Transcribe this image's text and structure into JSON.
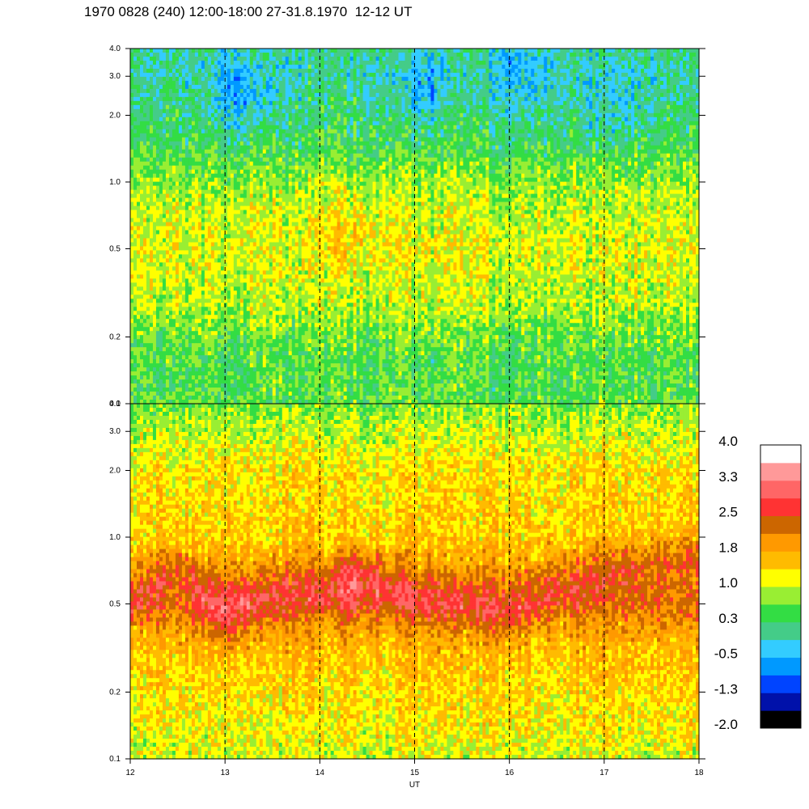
{
  "title": "1970 0828 (240) 12:00-18:00 27-31.8.1970  12-12 UT",
  "chart_data": {
    "type": "heatmap",
    "title": "1970 0828 (240) 12:00-18:00 27-31.8.1970  12-12 UT",
    "xlabel": "UT",
    "ylabel": "",
    "xlim": [
      12,
      18
    ],
    "x_ticks": [
      "12",
      "13",
      "14",
      "15",
      "16",
      "17",
      "18"
    ],
    "x_tick_values": [
      12,
      13,
      14,
      15,
      16,
      17,
      18
    ],
    "ylim": [
      0.1,
      4.0
    ],
    "y_scale": "log",
    "y_ticks": [
      "4.0",
      "3.0",
      "2.0",
      "1.0",
      "0.5",
      "0.2",
      "0.1"
    ],
    "y_tick_values": [
      4.0,
      3.0,
      2.0,
      1.0,
      0.5,
      0.2,
      0.1
    ],
    "dashed_gridlines_x": [
      13,
      14,
      15,
      16,
      17
    ],
    "panels": [
      {
        "name": "upper",
        "profile": [
          {
            "y": 0.1,
            "level": 0.5
          },
          {
            "y": 0.15,
            "level": 0.45
          },
          {
            "y": 0.2,
            "level": 0.6
          },
          {
            "y": 0.3,
            "level": 0.95
          },
          {
            "y": 0.5,
            "level": 1.1
          },
          {
            "y": 0.7,
            "level": 1.0
          },
          {
            "y": 1.0,
            "level": 0.8
          },
          {
            "y": 1.5,
            "level": 0.35
          },
          {
            "y": 2.0,
            "level": 0.2
          },
          {
            "y": 3.0,
            "level": 0.0
          },
          {
            "y": 4.0,
            "level": 0.1
          }
        ],
        "enhancements": [
          {
            "x": 14.3,
            "y": 0.6,
            "delta": 0.4
          },
          {
            "x": 13.2,
            "y": 2.5,
            "delta": -0.6
          },
          {
            "x": 15.1,
            "y": 2.8,
            "delta": -0.5
          },
          {
            "x": 16.1,
            "y": 3.0,
            "delta": -0.4
          },
          {
            "x": 17.1,
            "y": 2.2,
            "delta": -0.4
          }
        ]
      },
      {
        "name": "lower",
        "profile": [
          {
            "y": 0.1,
            "level": 1.15
          },
          {
            "y": 0.15,
            "level": 1.4
          },
          {
            "y": 0.2,
            "level": 1.5
          },
          {
            "y": 0.3,
            "level": 1.7
          },
          {
            "y": 0.4,
            "level": 2.0
          },
          {
            "y": 0.5,
            "level": 2.35
          },
          {
            "y": 0.6,
            "level": 2.2
          },
          {
            "y": 0.8,
            "level": 1.85
          },
          {
            "y": 1.0,
            "level": 1.6
          },
          {
            "y": 2.0,
            "level": 1.45
          },
          {
            "y": 3.0,
            "level": 1.1
          },
          {
            "y": 4.0,
            "level": 0.8
          }
        ],
        "ridge": [
          {
            "x": 12.0,
            "y": 0.5
          },
          {
            "x": 12.5,
            "y": 0.75
          },
          {
            "x": 13.0,
            "y": 0.45
          },
          {
            "x": 13.5,
            "y": 0.55
          },
          {
            "x": 14.0,
            "y": 0.6
          },
          {
            "x": 14.4,
            "y": 0.65
          },
          {
            "x": 15.0,
            "y": 0.52
          },
          {
            "x": 15.5,
            "y": 0.5
          },
          {
            "x": 16.0,
            "y": 0.45
          },
          {
            "x": 16.5,
            "y": 0.6
          },
          {
            "x": 17.0,
            "y": 0.7
          },
          {
            "x": 17.5,
            "y": 0.75
          },
          {
            "x": 18.0,
            "y": 0.82
          }
        ],
        "enhancements": [
          {
            "x": 13.0,
            "y": 0.45,
            "delta": 0.35
          },
          {
            "x": 14.4,
            "y": 0.6,
            "delta": 0.4
          }
        ]
      }
    ],
    "colorbar": {
      "labels": [
        "4.0",
        "3.3",
        "2.5",
        "1.8",
        "1.0",
        "0.3",
        "-0.5",
        "-1.3",
        "-2.0"
      ],
      "min": -2.0,
      "max": 4.0,
      "colors": [
        "#000000",
        "#0011aa",
        "#0044ff",
        "#0099ff",
        "#33ccff",
        "#44cc88",
        "#33dd44",
        "#99ee33",
        "#ffff00",
        "#ffbb00",
        "#ff9900",
        "#cc6600",
        "#ff3333",
        "#ff6666",
        "#ff9999",
        "#ffffff"
      ]
    }
  }
}
